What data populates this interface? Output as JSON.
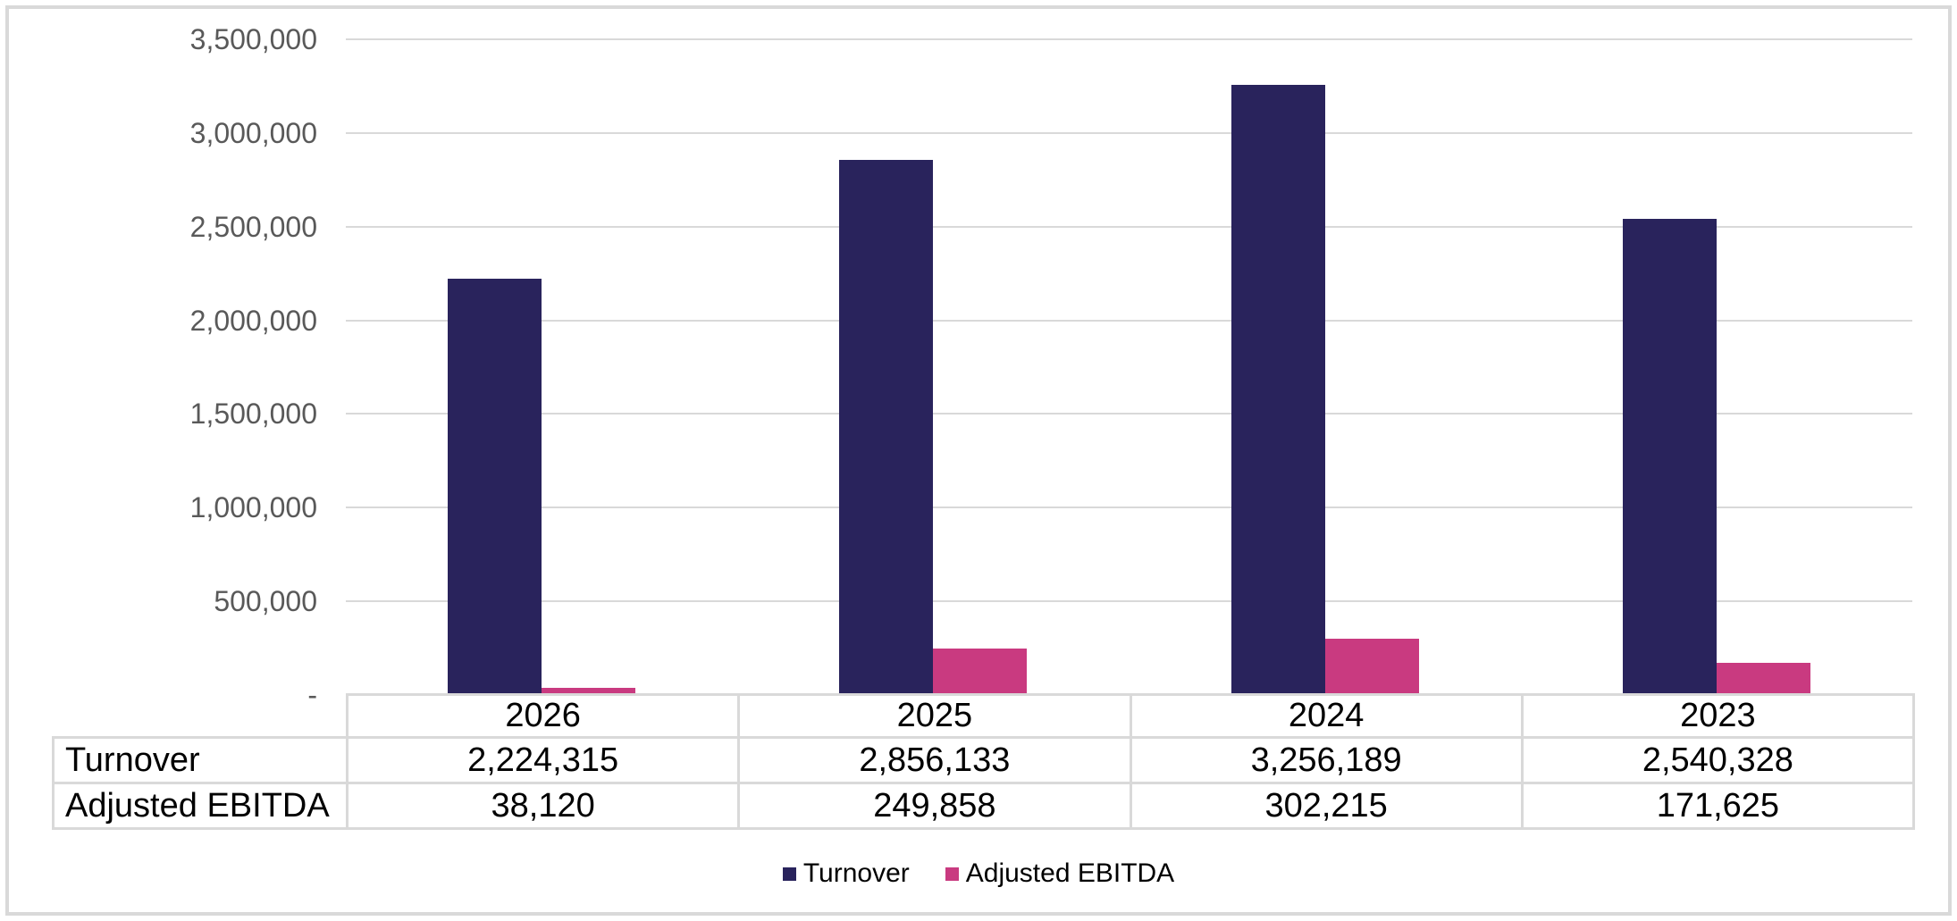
{
  "chart_data": {
    "type": "bar",
    "title": "",
    "xlabel": "",
    "ylabel": "",
    "categories": [
      "2026",
      "2025",
      "2024",
      "2023"
    ],
    "series": [
      {
        "name": "Turnover",
        "color": "#29235C",
        "values": [
          2224315,
          2856133,
          3256189,
          2540328
        ]
      },
      {
        "name": "Adjusted EBITDA",
        "color": "#C93A80",
        "values": [
          38120,
          249858,
          302215,
          171625
        ]
      }
    ],
    "ylim": [
      0,
      3500000
    ],
    "y_tick_step": 500000,
    "y_tick_labels_top_to_bottom": [
      "3,500,000",
      "3,000,000",
      "2,500,000",
      "2,000,000",
      "1,500,000",
      "1,000,000",
      "500,000",
      "-"
    ],
    "grid": true,
    "legend_position": "bottom",
    "legend_labels": [
      "Turnover",
      "Adjusted EBITDA"
    ],
    "data_table": {
      "row_headers": [
        "Turnover",
        "Adjusted EBITDA"
      ],
      "cell_values": [
        [
          "2,224,315",
          "2,856,133",
          "3,256,189",
          "2,540,328"
        ],
        [
          "38,120",
          "249,858",
          "302,215",
          "171,625"
        ]
      ]
    }
  },
  "colors": {
    "background": "#FFFFFF",
    "frame_border": "#D9D9D9",
    "gridline": "#D9D9D9",
    "table_border": "#D9D9D9",
    "axis_label_text": "#595959",
    "table_text": "#000000",
    "legend_text": "#000000",
    "turnover_bar": "#29235C",
    "adjusted_ebitda_bar": "#C93A80"
  }
}
